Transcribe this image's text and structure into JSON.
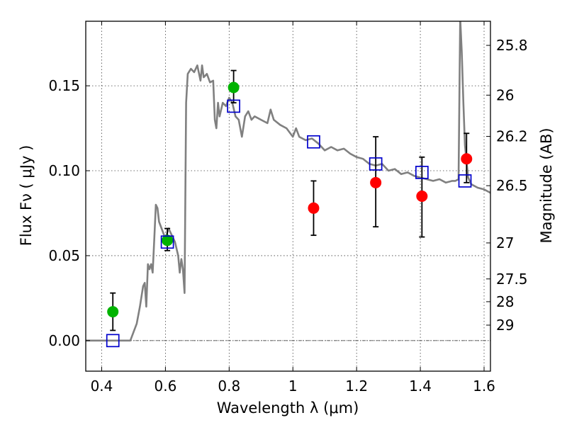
{
  "chart_data": {
    "type": "scatter",
    "title": "",
    "xlabel": "Wavelength  λ (μm)",
    "ylabel": "Flux  Fν  ( μJy )",
    "y2label": "Magnitude (AB)",
    "xlim": [
      0.35,
      1.62
    ],
    "ylim": [
      -0.018,
      0.188
    ],
    "xticks": [
      0.4,
      0.6,
      0.8,
      1.0,
      1.2,
      1.4,
      1.6
    ],
    "xtick_labels": [
      "0.4",
      "0.6",
      "0.8",
      "1",
      "1.2",
      "1.4",
      "1.6"
    ],
    "yticks": [
      0.0,
      0.05,
      0.1,
      0.15
    ],
    "ytick_labels": [
      "0.00",
      "0.05",
      "0.10",
      "0.15"
    ],
    "magnitude_ticks": [
      {
        "label": "25.8",
        "flux": 0.1738
      },
      {
        "label": "26",
        "flux": 0.1445
      },
      {
        "label": "26.2",
        "flux": 0.1202
      },
      {
        "label": "26.5",
        "flux": 0.0912
      },
      {
        "label": "27",
        "flux": 0.0575
      },
      {
        "label": "27.5",
        "flux": 0.0363
      },
      {
        "label": "28",
        "flux": 0.0229
      },
      {
        "label": "29",
        "flux": 0.0091
      }
    ],
    "grid": true,
    "zero_line": true,
    "colors": {
      "model": "#808080",
      "green": "#00b300",
      "red": "#ff0000",
      "blue": "#0000cc",
      "errorbar": "#000000"
    },
    "series": [
      {
        "name": "model spectrum",
        "type": "line",
        "x": [
          0.35,
          0.49,
          0.5,
          0.51,
          0.52,
          0.53,
          0.535,
          0.54,
          0.545,
          0.55,
          0.555,
          0.56,
          0.565,
          0.57,
          0.575,
          0.58,
          0.59,
          0.6,
          0.61,
          0.62,
          0.63,
          0.64,
          0.645,
          0.65,
          0.655,
          0.66,
          0.665,
          0.67,
          0.68,
          0.69,
          0.7,
          0.71,
          0.715,
          0.72,
          0.73,
          0.74,
          0.75,
          0.755,
          0.76,
          0.765,
          0.77,
          0.78,
          0.79,
          0.8,
          0.81,
          0.82,
          0.83,
          0.84,
          0.85,
          0.86,
          0.87,
          0.88,
          0.9,
          0.92,
          0.93,
          0.94,
          0.96,
          0.98,
          1.0,
          1.01,
          1.02,
          1.04,
          1.06,
          1.08,
          1.1,
          1.12,
          1.14,
          1.16,
          1.18,
          1.2,
          1.22,
          1.24,
          1.26,
          1.28,
          1.3,
          1.32,
          1.34,
          1.36,
          1.38,
          1.4,
          1.42,
          1.44,
          1.46,
          1.48,
          1.5,
          1.51,
          1.52,
          1.525,
          1.53,
          1.535,
          1.54,
          1.55,
          1.56,
          1.58,
          1.6,
          1.62
        ],
        "y": [
          0.0,
          0.0,
          0.005,
          0.01,
          0.02,
          0.032,
          0.034,
          0.02,
          0.045,
          0.042,
          0.045,
          0.04,
          0.06,
          0.08,
          0.078,
          0.07,
          0.065,
          0.06,
          0.066,
          0.062,
          0.058,
          0.05,
          0.04,
          0.048,
          0.042,
          0.028,
          0.14,
          0.157,
          0.16,
          0.158,
          0.162,
          0.153,
          0.162,
          0.155,
          0.157,
          0.152,
          0.153,
          0.13,
          0.125,
          0.14,
          0.132,
          0.14,
          0.138,
          0.143,
          0.14,
          0.132,
          0.13,
          0.12,
          0.132,
          0.135,
          0.13,
          0.132,
          0.13,
          0.128,
          0.136,
          0.13,
          0.127,
          0.125,
          0.12,
          0.125,
          0.12,
          0.118,
          0.119,
          0.116,
          0.112,
          0.114,
          0.112,
          0.113,
          0.11,
          0.108,
          0.107,
          0.104,
          0.103,
          0.104,
          0.1,
          0.101,
          0.098,
          0.099,
          0.097,
          0.096,
          0.095,
          0.094,
          0.095,
          0.093,
          0.094,
          0.094,
          0.095,
          0.19,
          0.17,
          0.14,
          0.115,
          0.096,
          0.092,
          0.09,
          0.089,
          0.087
        ]
      },
      {
        "name": "observed (green)",
        "type": "errorbar",
        "color": "green",
        "points": [
          {
            "x": 0.435,
            "y": 0.017,
            "lo": 0.006,
            "hi": 0.028
          },
          {
            "x": 0.606,
            "y": 0.059,
            "lo": 0.053,
            "hi": 0.066
          },
          {
            "x": 0.814,
            "y": 0.149,
            "lo": 0.14,
            "hi": 0.159
          }
        ]
      },
      {
        "name": "observed (red)",
        "type": "errorbar",
        "color": "red",
        "points": [
          {
            "x": 1.065,
            "y": 0.078,
            "lo": 0.062,
            "hi": 0.094
          },
          {
            "x": 1.26,
            "y": 0.093,
            "lo": 0.067,
            "hi": 0.12
          },
          {
            "x": 1.405,
            "y": 0.085,
            "lo": 0.061,
            "hi": 0.108
          },
          {
            "x": 1.545,
            "y": 0.107,
            "lo": 0.093,
            "hi": 0.122
          }
        ]
      },
      {
        "name": "model photometry",
        "type": "open-square",
        "color": "blue",
        "points": [
          {
            "x": 0.435,
            "y": 0.0
          },
          {
            "x": 0.606,
            "y": 0.058
          },
          {
            "x": 0.814,
            "y": 0.138
          },
          {
            "x": 1.065,
            "y": 0.117
          },
          {
            "x": 1.26,
            "y": 0.104
          },
          {
            "x": 1.405,
            "y": 0.099
          },
          {
            "x": 1.54,
            "y": 0.094
          }
        ]
      }
    ]
  }
}
